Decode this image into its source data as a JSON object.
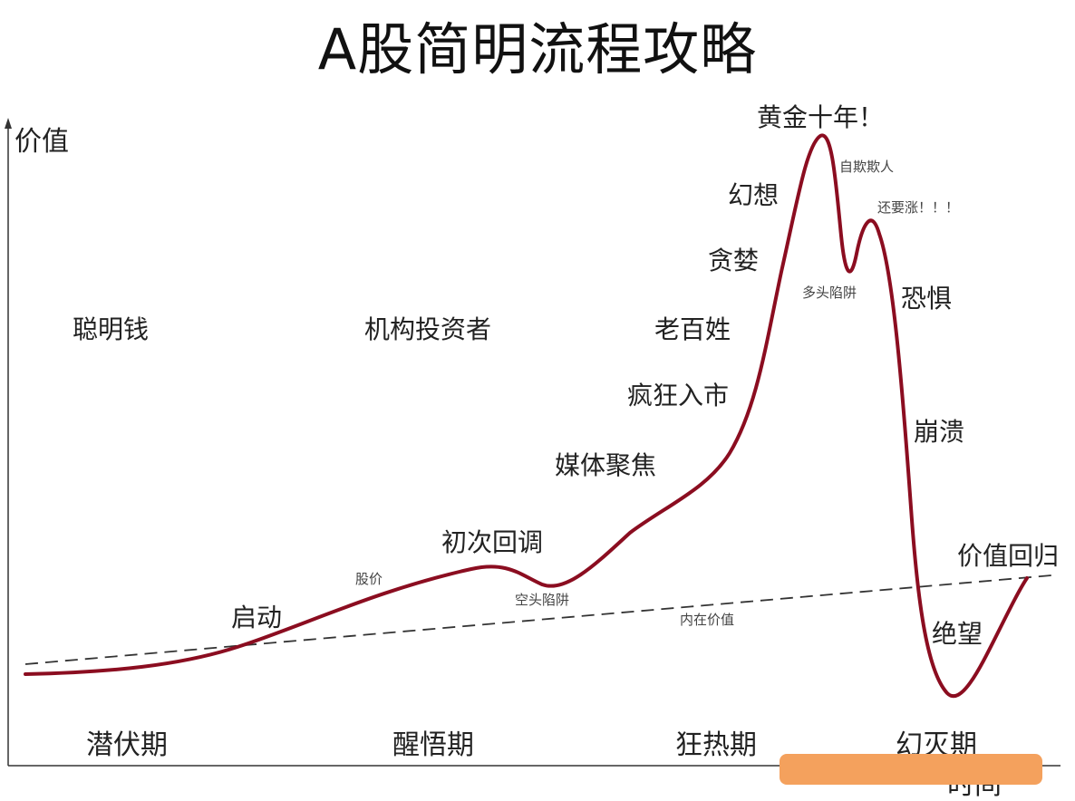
{
  "title": "A股简明流程攻略",
  "axes": {
    "y_label": "价值",
    "x_label": "时间"
  },
  "participants": [
    "聪明钱",
    "机构投资者",
    "老百姓"
  ],
  "phases": [
    "潜伏期",
    "醒悟期",
    "狂热期",
    "幻灭期"
  ],
  "stage_labels": {
    "start": "启动",
    "first_pullback": "初次回调",
    "media_focus": "媒体聚焦",
    "frenzy_entry": "疯狂入市",
    "greed": "贪婪",
    "fantasy": "幻想",
    "golden_decade": "黄金十年！",
    "fear": "恐惧",
    "collapse": "崩溃",
    "despair": "绝望",
    "value_return": "价值回归"
  },
  "small_labels": {
    "stock_price": "股价",
    "short_trap": "空头陷阱",
    "intrinsic_value": "内在价值",
    "self_deception": "自欺欺人",
    "bull_trap": "多头陷阱",
    "still_rising": "还要涨！！！"
  },
  "colors": {
    "curve": "#8b0d20",
    "value_line": "#333333",
    "overlay_bar": "#f4a15d"
  }
}
